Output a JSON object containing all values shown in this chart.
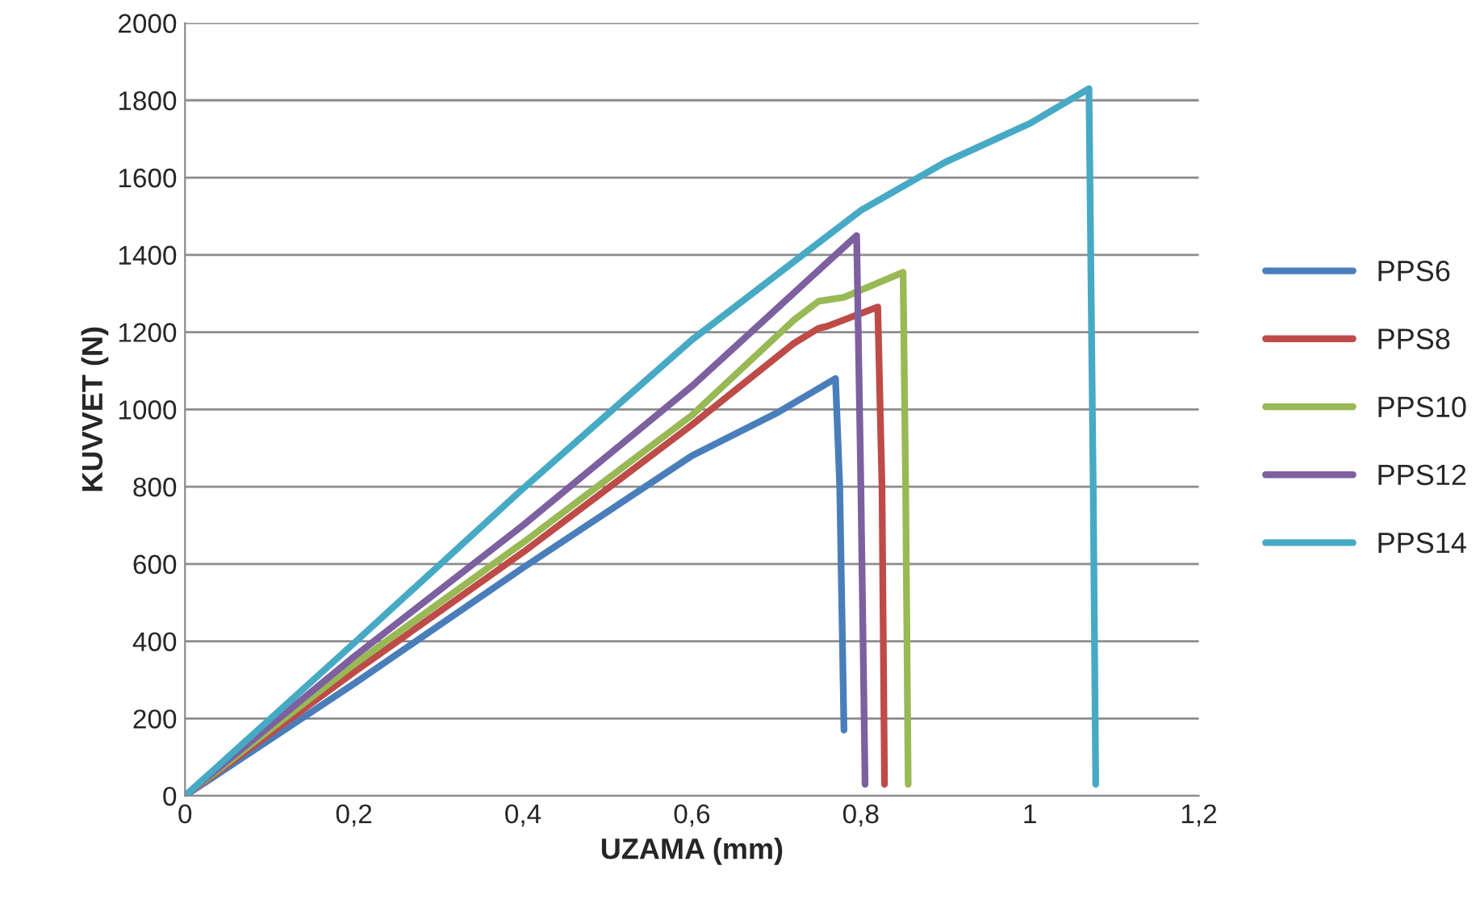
{
  "chart_data": {
    "type": "line",
    "xlabel": "UZAMA (mm)",
    "ylabel": "KUVVET (N)",
    "xlim": [
      0,
      1.2
    ],
    "xticks": [
      0,
      {
        "value": 0.2,
        "label": "0,2"
      },
      {
        "value": 0.4,
        "label": "0,4"
      },
      {
        "value": 0.6,
        "label": "0,6"
      },
      {
        "value": 0.8,
        "label": "0,8"
      },
      1,
      {
        "value": 1.2,
        "label": "1,2"
      }
    ],
    "ylim": [
      0,
      2000
    ],
    "yticks": [
      0,
      200,
      400,
      600,
      800,
      1000,
      1200,
      1400,
      1600,
      1800,
      2000
    ],
    "grid": "y",
    "legend": "right",
    "marker": "none",
    "line_style": "solid",
    "series": [
      {
        "name": "PPS6",
        "color": "#4a7ebb",
        "x": [
          0,
          0.2,
          0.4,
          0.6,
          0.7,
          0.77,
          0.775,
          0.78
        ],
        "values": [
          0,
          290,
          590,
          880,
          990,
          1080,
          800,
          170
        ]
      },
      {
        "name": "PPS8",
        "color": "#be4b48",
        "x": [
          0,
          0.2,
          0.4,
          0.6,
          0.72,
          0.75,
          0.76,
          0.82,
          0.825,
          0.828
        ],
        "values": [
          0,
          320,
          630,
          960,
          1170,
          1210,
          1215,
          1265,
          800,
          30
        ]
      },
      {
        "name": "PPS10",
        "color": "#98b954",
        "x": [
          0,
          0.2,
          0.4,
          0.6,
          0.72,
          0.75,
          0.78,
          0.85,
          0.853,
          0.856
        ],
        "values": [
          0,
          340,
          655,
          985,
          1230,
          1280,
          1290,
          1355,
          800,
          30
        ]
      },
      {
        "name": "PPS12",
        "color": "#7d60a0",
        "x": [
          0,
          0.2,
          0.4,
          0.6,
          0.7,
          0.795,
          0.8,
          0.805
        ],
        "values": [
          0,
          360,
          700,
          1060,
          1260,
          1450,
          800,
          30
        ]
      },
      {
        "name": "PPS14",
        "color": "#46aac5",
        "x": [
          0,
          0.2,
          0.4,
          0.6,
          0.8,
          0.9,
          1.0,
          1.07,
          1.075,
          1.078
        ],
        "values": [
          0,
          395,
          795,
          1180,
          1515,
          1640,
          1740,
          1830,
          800,
          30
        ]
      }
    ]
  }
}
